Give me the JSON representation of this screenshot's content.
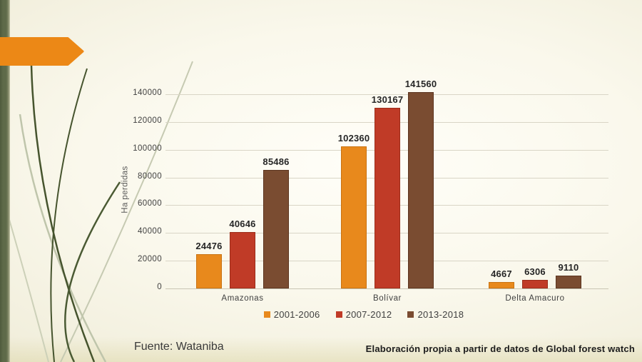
{
  "slide": {
    "background_color": "#f2efdd",
    "accent_bar_color": "#5e6a49",
    "arrow_color": "#ec8816"
  },
  "captions": {
    "source": "Fuente: Wataniba",
    "attribution": "Elaboración propia a partir de datos de Global forest watch"
  },
  "chart_data": {
    "type": "bar",
    "title": "",
    "xlabel": "",
    "ylabel": "Ha perdidas",
    "categories": [
      "Amazonas",
      "Bolívar",
      "Delta Amacuro"
    ],
    "series": [
      {
        "name": "2001-2006",
        "color": "#e8891c",
        "border_color": "#c97312",
        "values": [
          24476,
          102360,
          4667
        ]
      },
      {
        "name": "2007-2012",
        "color": "#c03b27",
        "border_color": "#9c2d1a",
        "values": [
          40646,
          130167,
          6306
        ]
      },
      {
        "name": "2013-2018",
        "color": "#7a4c31",
        "border_color": "#5c3520",
        "values": [
          85486,
          141560,
          9110
        ]
      }
    ],
    "ylim": [
      0,
      140000
    ],
    "yticks": [
      0,
      20000,
      40000,
      60000,
      80000,
      100000,
      120000,
      140000
    ],
    "grid": true,
    "gridline_color": "#d9d5c6",
    "legend_position": "bottom"
  }
}
